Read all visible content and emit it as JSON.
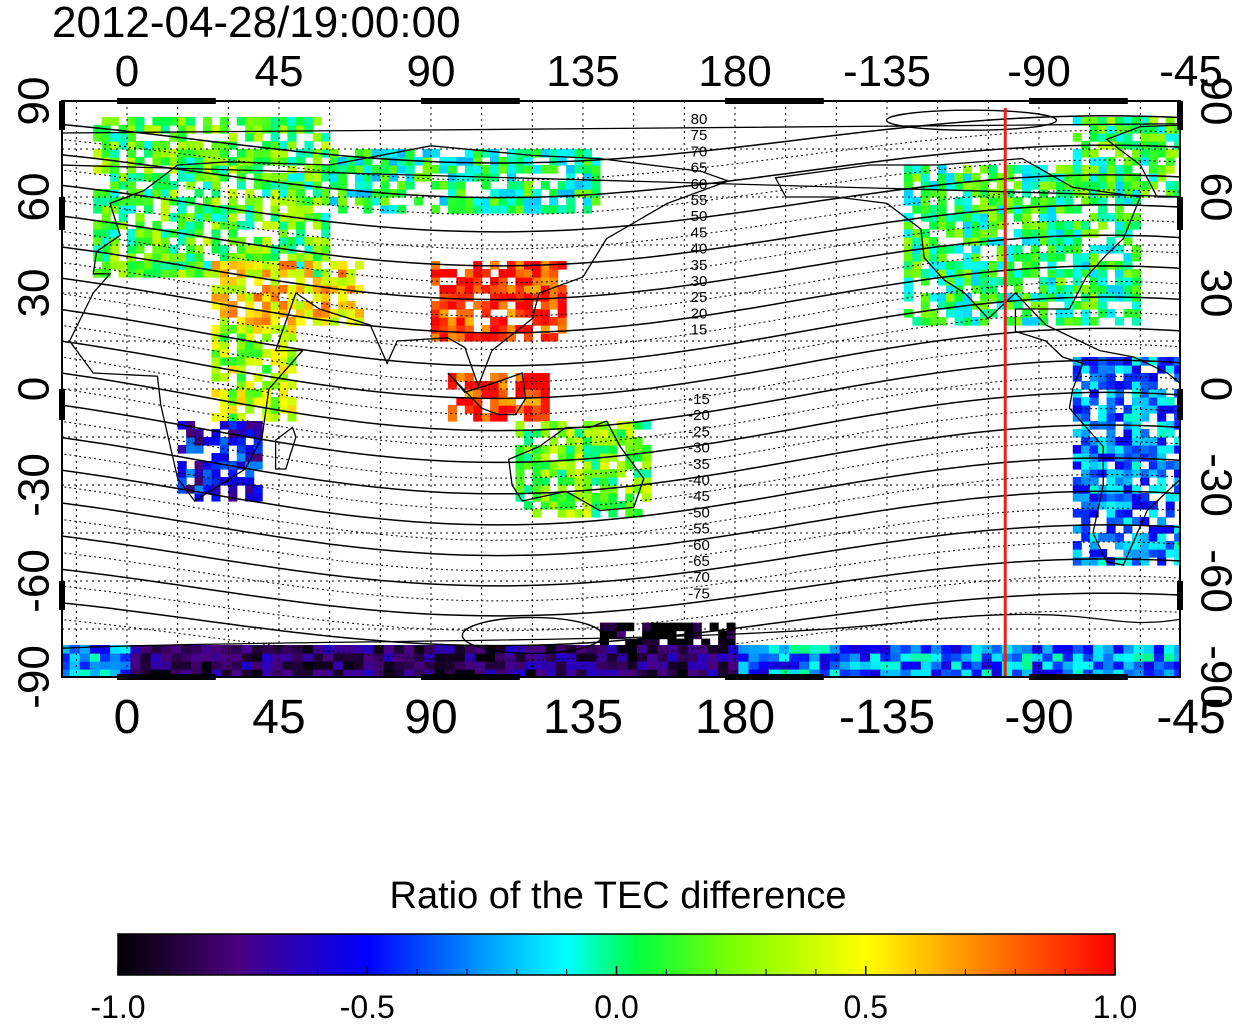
{
  "timestamp": "2012-04-28/19:00:00",
  "colorbar_title": "Ratio of the TEC difference",
  "colorbar_ticks": [
    "-1.0",
    "-0.5",
    "0.0",
    "0.5",
    "1.0"
  ],
  "colorbar_range": [
    -1.0,
    1.0
  ],
  "lon_ticks": [
    "0",
    "45",
    "90",
    "135",
    "180",
    "-135",
    "-90",
    "-45"
  ],
  "lat_ticks": [
    "90",
    "60",
    "30",
    "0",
    "-30",
    "-60",
    "-90"
  ],
  "contour_labels_north": [
    "80",
    "75",
    "70",
    "65",
    "60",
    "55",
    "50",
    "45",
    "40",
    "35",
    "30",
    "25",
    "20",
    "15"
  ],
  "contour_labels_south": [
    "-15",
    "-20",
    "-25",
    "-30",
    "-35",
    "-40",
    "-45",
    "-50",
    "-55",
    "-60",
    "-65",
    "-70",
    "-75"
  ],
  "colors": {
    "terminator_line": "#e8201a",
    "colormap": [
      "#000000",
      "#4a0080",
      "#0000ff",
      "#00ffff",
      "#00ff00",
      "#ffff00",
      "#ff8000",
      "#ff0000"
    ]
  },
  "overlays": {
    "red_vertical_meridian_lon": -100
  },
  "regions": [
    {
      "name": "europe",
      "value": 0.15,
      "lon": [
        -10,
        60
      ],
      "lat": [
        35,
        85
      ]
    },
    {
      "name": "siberia-north",
      "value": 0.0,
      "lon": [
        60,
        140
      ],
      "lat": [
        55,
        75
      ]
    },
    {
      "name": "middle-east",
      "value": 0.55,
      "lon": [
        25,
        70
      ],
      "lat": [
        20,
        40
      ]
    },
    {
      "name": "east-africa",
      "value": 0.35,
      "lon": [
        25,
        50
      ],
      "lat": [
        -10,
        20
      ]
    },
    {
      "name": "south-africa",
      "value": -0.55,
      "lon": [
        15,
        40
      ],
      "lat": [
        -35,
        -10
      ]
    },
    {
      "name": "china",
      "value": 0.9,
      "lon": [
        90,
        130
      ],
      "lat": [
        15,
        40
      ]
    },
    {
      "name": "indonesia",
      "value": 0.9,
      "lon": [
        95,
        125
      ],
      "lat": [
        -10,
        5
      ]
    },
    {
      "name": "australia",
      "value": 0.2,
      "lon": [
        115,
        155
      ],
      "lat": [
        -40,
        -10
      ]
    },
    {
      "name": "north-america",
      "value": 0.05,
      "lon": [
        -130,
        -60
      ],
      "lat": [
        20,
        70
      ]
    },
    {
      "name": "greenland",
      "value": 0.1,
      "lon": [
        -80,
        -20
      ],
      "lat": [
        60,
        85
      ]
    },
    {
      "name": "south-america",
      "value": -0.3,
      "lon": [
        -80,
        -40
      ],
      "lat": [
        -55,
        10
      ]
    },
    {
      "name": "antarctica-pacific",
      "value": -1.0,
      "lon": [
        140,
        180
      ],
      "lat": [
        -88,
        -75
      ]
    }
  ]
}
